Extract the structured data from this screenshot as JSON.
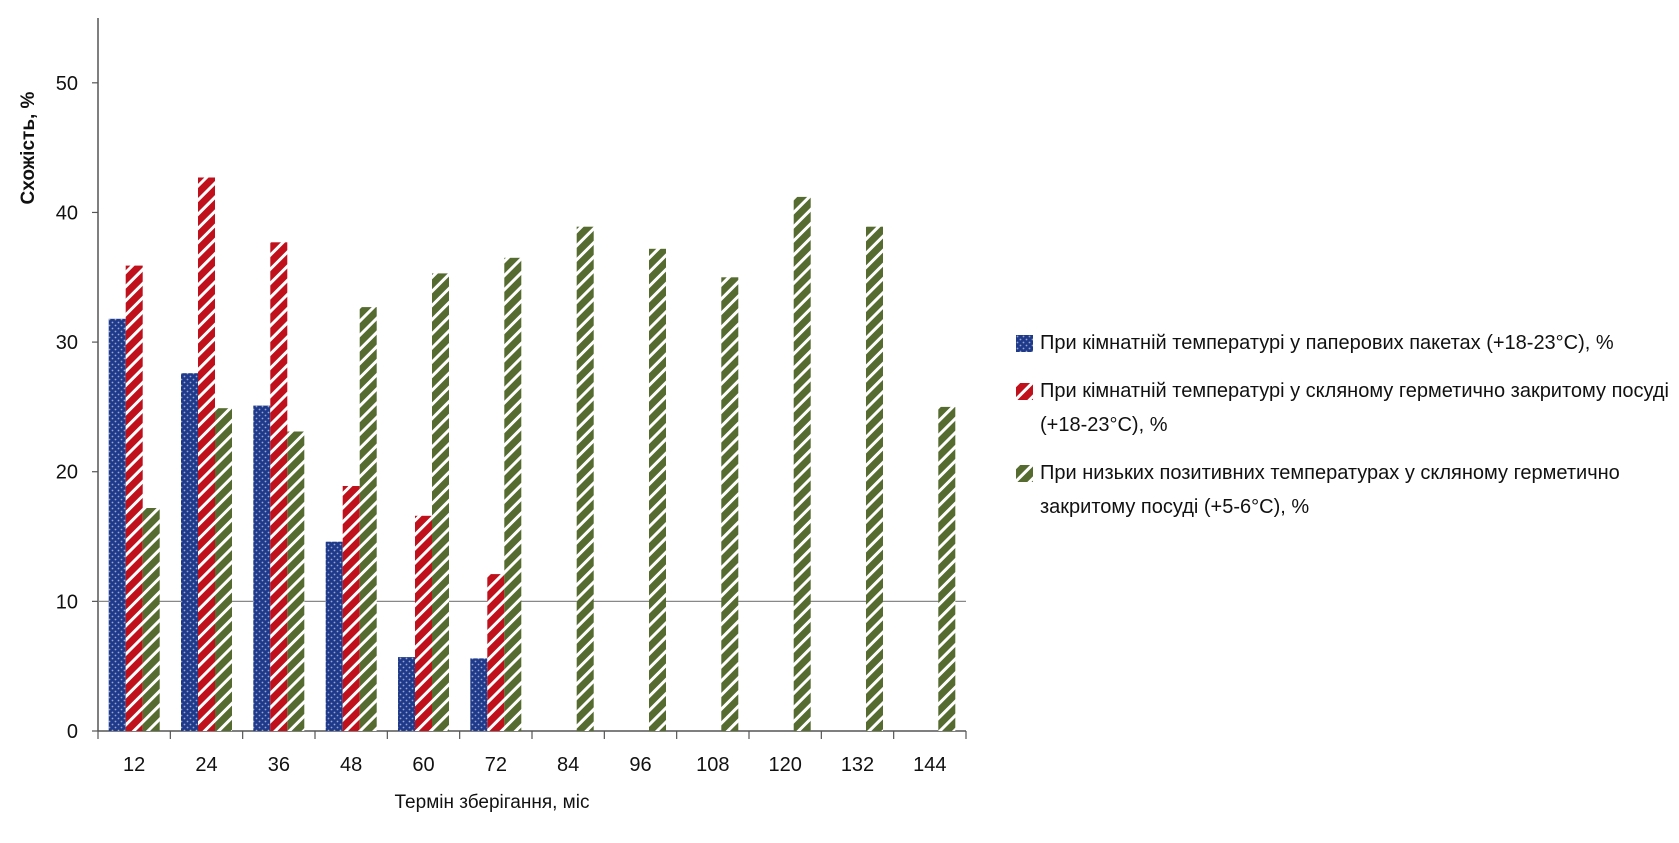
{
  "chart_data": {
    "type": "bar",
    "title": "",
    "xlabel": "Термін зберігання, міс",
    "ylabel": "Схожість, %",
    "categories": [
      "12",
      "24",
      "36",
      "48",
      "60",
      "72",
      "84",
      "96",
      "108",
      "120",
      "132",
      "144"
    ],
    "ylim": [
      0,
      55
    ],
    "yticks": [
      0,
      10,
      20,
      30,
      40,
      50
    ],
    "grid": "horizontal line at 10",
    "legend_position": "right",
    "series": [
      {
        "name": "При кімнатній температурі у паперових пакетах (+18-23°С), %",
        "color": "#1F3A8A",
        "pattern": "dots",
        "values": [
          31.8,
          27.6,
          25.1,
          14.6,
          5.7,
          5.6,
          null,
          null,
          null,
          null,
          null,
          null
        ]
      },
      {
        "name": "При кімнатній температурі у скляному герметично закритому посуді (+18-23°С), %",
        "color": "#C0101C",
        "pattern": "diagonal-stripes",
        "values": [
          35.9,
          42.7,
          37.7,
          18.9,
          16.6,
          12.1,
          null,
          null,
          null,
          null,
          null,
          null
        ]
      },
      {
        "name": "При низьких позитивних температурах у скляному герметично закритому посуді (+5-6°С), %",
        "color": "#556B2F",
        "pattern": "diagonal-stripes",
        "values": [
          17.2,
          24.9,
          23.1,
          32.7,
          35.3,
          36.5,
          38.9,
          37.2,
          35.0,
          41.2,
          38.9,
          25.0
        ]
      }
    ]
  }
}
